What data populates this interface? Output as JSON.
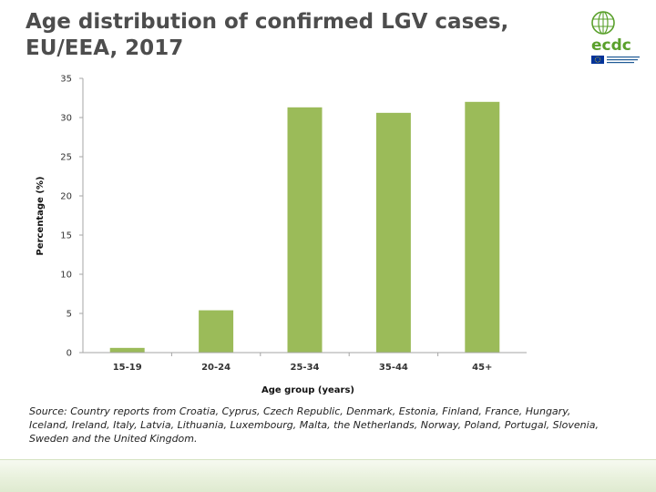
{
  "title": "Age distribution of confirmed LGV cases, EU/EEA, 2017",
  "logo": {
    "icon": "ecdc-globe-icon",
    "text": "ecdc",
    "colors": {
      "green": "#5aa02c",
      "blue": "#1f5a96",
      "eu_blue": "#003399",
      "eu_star": "#ffcc00"
    }
  },
  "source": "Source: Country reports from Croatia, Cyprus, Czech Republic, Denmark, Estonia, Finland, France, Hungary, Iceland, Ireland, Italy, Latvia, Lithuania, Luxembourg, Malta, the Netherlands, Norway, Poland, Portugal, Slovenia, Sweden and the United Kingdom.",
  "colors": {
    "bar": "#9bbb59",
    "axis": "#a6a6a6",
    "title": "#4d4d4d"
  },
  "chart_data": {
    "type": "bar",
    "title": "",
    "xlabel": "Age group (years)",
    "ylabel": "Percentage (%)",
    "categories": [
      "15-19",
      "20-24",
      "25-34",
      "35-44",
      "45+"
    ],
    "values": [
      0.6,
      5.4,
      31.3,
      30.6,
      32.0
    ],
    "ylim": [
      0,
      35
    ],
    "yticks": [
      0,
      5,
      10,
      15,
      20,
      25,
      30,
      35
    ],
    "grid": false,
    "legend": "none"
  }
}
